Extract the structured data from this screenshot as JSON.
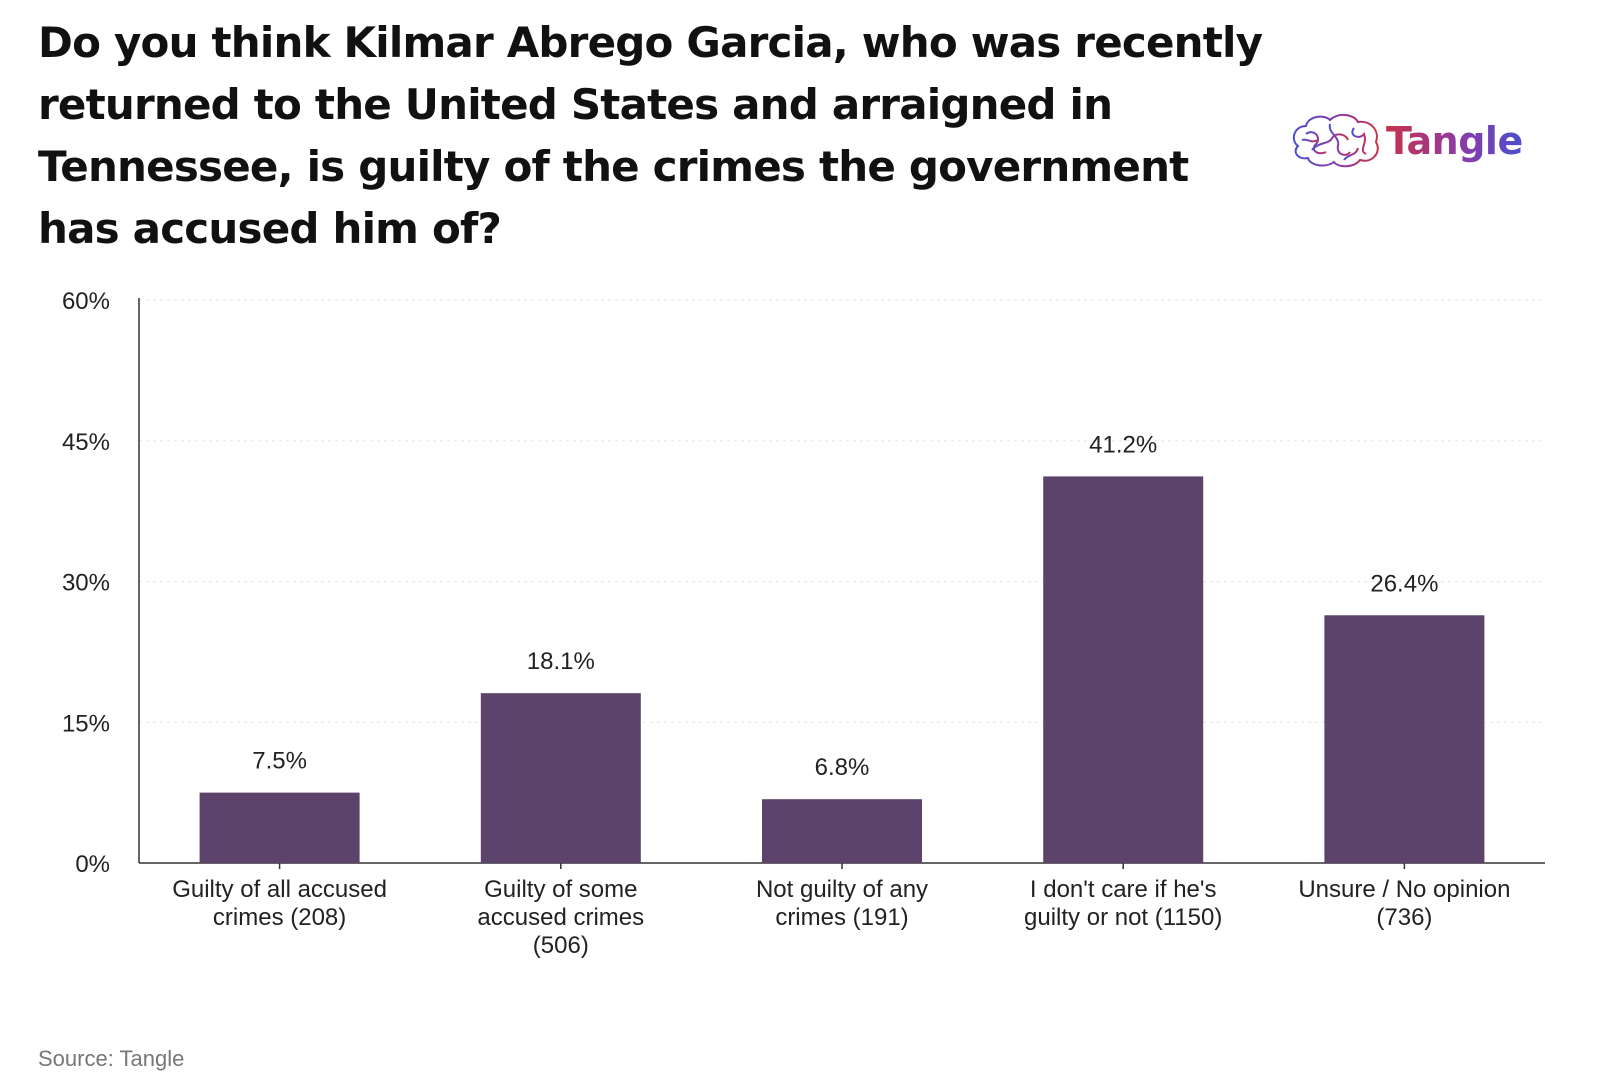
{
  "title": "Do you think Kilmar Abrego Garcia, who was recently returned to the United States and arraigned in Tennessee, is guilty of the crimes the government has accused him of?",
  "brand": {
    "name": "Tangle",
    "icon": "brain-logo-icon"
  },
  "source": "Source: Tangle",
  "colors": {
    "bar": "#5b436c",
    "grid": "#e6e6e6",
    "axis": "#333333"
  },
  "chart_data": {
    "type": "bar",
    "title": "Do you think Kilmar Abrego Garcia, who was recently returned to the United States and arraigned in Tennessee, is guilty of the crimes the government has accused him of?",
    "categories": [
      [
        "Guilty of all accused",
        "crimes (208)"
      ],
      [
        "Guilty of some",
        "accused crimes",
        "(506)"
      ],
      [
        "Not guilty of any",
        "crimes (191)"
      ],
      [
        "I don't care if he's",
        "guilty or not (1150)"
      ],
      [
        "Unsure / No opinion",
        "(736)"
      ]
    ],
    "values": [
      7.5,
      18.1,
      6.8,
      41.2,
      26.4
    ],
    "value_labels": [
      "7.5%",
      "18.1%",
      "6.8%",
      "41.2%",
      "26.4%"
    ],
    "yticks": [
      0,
      15,
      30,
      45,
      60
    ],
    "ytick_labels": [
      "0%",
      "15%",
      "30%",
      "45%",
      "60%"
    ],
    "ylim": [
      0,
      60
    ],
    "grid": true,
    "xlabel": "",
    "ylabel": ""
  }
}
